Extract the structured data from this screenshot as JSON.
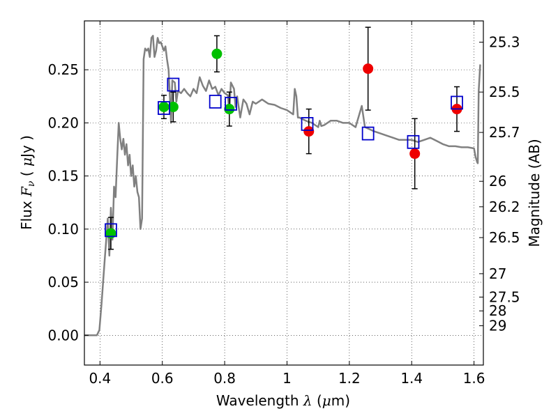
{
  "chart_data": {
    "type": "scatter",
    "xlabel": "Wavelength  λ (μm)",
    "ylabel": "Flux  F_ν  ( μJy )",
    "ylabel_parts": {
      "pre": "Flux  ",
      "sym": "F",
      "sub": "ν",
      "unit_open": "  ( ",
      "mu": "μ",
      "unit_close": "Jy )"
    },
    "xlabel_parts": {
      "pre": "Wavelength  ",
      "sym": "λ",
      "open": " (",
      "mu": "μ",
      "close": "m)"
    },
    "ylabel_right": "Magnitude (AB)",
    "xlim": [
      0.35,
      1.63
    ],
    "ylim": [
      -0.028,
      0.296
    ],
    "x_ticks": [
      {
        "value": 0.4,
        "label": "0.4"
      },
      {
        "value": 0.6,
        "label": "0.6"
      },
      {
        "value": 0.8,
        "label": "0.8"
      },
      {
        "value": 1.0,
        "label": "1"
      },
      {
        "value": 1.2,
        "label": "1.2"
      },
      {
        "value": 1.4,
        "label": "1.4"
      },
      {
        "value": 1.6,
        "label": "1.6"
      }
    ],
    "y_ticks": [
      {
        "value": 0.0,
        "label": "0.00"
      },
      {
        "value": 0.05,
        "label": "0.05"
      },
      {
        "value": 0.1,
        "label": "0.10"
      },
      {
        "value": 0.15,
        "label": "0.15"
      },
      {
        "value": 0.2,
        "label": "0.20"
      },
      {
        "value": 0.25,
        "label": "0.25"
      }
    ],
    "right_ticks": [
      {
        "flux": 0.276,
        "label": "25.3"
      },
      {
        "flux": 0.229,
        "label": "25.5"
      },
      {
        "flux": 0.191,
        "label": "25.7"
      },
      {
        "flux": 0.145,
        "label": "26"
      },
      {
        "flux": 0.121,
        "label": "26.2"
      },
      {
        "flux": 0.092,
        "label": "26.5"
      },
      {
        "flux": 0.058,
        "label": "27"
      },
      {
        "flux": 0.036,
        "label": "27.5"
      },
      {
        "flux": 0.023,
        "label": "28"
      },
      {
        "flux": 0.009,
        "label": "29"
      }
    ],
    "grid": true,
    "colors": {
      "sed": "#808080",
      "model_box": "#0000cc",
      "green": "#00c000",
      "red": "#ee0000",
      "errorbar": "#000000"
    },
    "series": [
      {
        "kind": "sed_model_curve",
        "points": [
          [
            0.35,
            0.0
          ],
          [
            0.39,
            0.0
          ],
          [
            0.398,
            0.005
          ],
          [
            0.405,
            0.03
          ],
          [
            0.41,
            0.05
          ],
          [
            0.415,
            0.07
          ],
          [
            0.42,
            0.09
          ],
          [
            0.425,
            0.11
          ],
          [
            0.43,
            0.075
          ],
          [
            0.435,
            0.12
          ],
          [
            0.44,
            0.09
          ],
          [
            0.445,
            0.14
          ],
          [
            0.45,
            0.13
          ],
          [
            0.455,
            0.165
          ],
          [
            0.46,
            0.2
          ],
          [
            0.465,
            0.185
          ],
          [
            0.47,
            0.175
          ],
          [
            0.475,
            0.185
          ],
          [
            0.48,
            0.17
          ],
          [
            0.485,
            0.18
          ],
          [
            0.49,
            0.16
          ],
          [
            0.495,
            0.17
          ],
          [
            0.5,
            0.15
          ],
          [
            0.505,
            0.16
          ],
          [
            0.51,
            0.14
          ],
          [
            0.515,
            0.15
          ],
          [
            0.52,
            0.135
          ],
          [
            0.525,
            0.13
          ],
          [
            0.53,
            0.1
          ],
          [
            0.535,
            0.11
          ],
          [
            0.54,
            0.26
          ],
          [
            0.545,
            0.27
          ],
          [
            0.55,
            0.268
          ],
          [
            0.555,
            0.27
          ],
          [
            0.56,
            0.262
          ],
          [
            0.565,
            0.28
          ],
          [
            0.57,
            0.282
          ],
          [
            0.575,
            0.262
          ],
          [
            0.58,
            0.268
          ],
          [
            0.585,
            0.28
          ],
          [
            0.59,
            0.275
          ],
          [
            0.595,
            0.276
          ],
          [
            0.6,
            0.272
          ],
          [
            0.605,
            0.268
          ],
          [
            0.61,
            0.272
          ],
          [
            0.615,
            0.26
          ],
          [
            0.62,
            0.25
          ],
          [
            0.625,
            0.22
          ],
          [
            0.628,
            0.2
          ],
          [
            0.632,
            0.24
          ],
          [
            0.64,
            0.238
          ],
          [
            0.645,
            0.22
          ],
          [
            0.65,
            0.23
          ],
          [
            0.66,
            0.228
          ],
          [
            0.67,
            0.232
          ],
          [
            0.68,
            0.228
          ],
          [
            0.69,
            0.225
          ],
          [
            0.7,
            0.232
          ],
          [
            0.71,
            0.228
          ],
          [
            0.72,
            0.243
          ],
          [
            0.73,
            0.235
          ],
          [
            0.74,
            0.23
          ],
          [
            0.75,
            0.24
          ],
          [
            0.76,
            0.232
          ],
          [
            0.77,
            0.234
          ],
          [
            0.78,
            0.226
          ],
          [
            0.79,
            0.232
          ],
          [
            0.8,
            0.228
          ],
          [
            0.81,
            0.226
          ],
          [
            0.815,
            0.21
          ],
          [
            0.82,
            0.238
          ],
          [
            0.83,
            0.232
          ],
          [
            0.835,
            0.215
          ],
          [
            0.84,
            0.225
          ],
          [
            0.85,
            0.205
          ],
          [
            0.86,
            0.222
          ],
          [
            0.87,
            0.218
          ],
          [
            0.88,
            0.208
          ],
          [
            0.89,
            0.22
          ],
          [
            0.9,
            0.218
          ],
          [
            0.92,
            0.222
          ],
          [
            0.94,
            0.218
          ],
          [
            0.96,
            0.217
          ],
          [
            0.98,
            0.214
          ],
          [
            1.0,
            0.212
          ],
          [
            1.02,
            0.208
          ],
          [
            1.025,
            0.232
          ],
          [
            1.03,
            0.225
          ],
          [
            1.035,
            0.205
          ],
          [
            1.04,
            0.205
          ],
          [
            1.06,
            0.202
          ],
          [
            1.08,
            0.2
          ],
          [
            1.1,
            0.196
          ],
          [
            1.105,
            0.202
          ],
          [
            1.11,
            0.197
          ],
          [
            1.12,
            0.198
          ],
          [
            1.14,
            0.202
          ],
          [
            1.16,
            0.202
          ],
          [
            1.18,
            0.2
          ],
          [
            1.2,
            0.2
          ],
          [
            1.22,
            0.196
          ],
          [
            1.24,
            0.216
          ],
          [
            1.25,
            0.196
          ],
          [
            1.28,
            0.192
          ],
          [
            1.3,
            0.19
          ],
          [
            1.32,
            0.188
          ],
          [
            1.34,
            0.186
          ],
          [
            1.36,
            0.184
          ],
          [
            1.38,
            0.184
          ],
          [
            1.4,
            0.184
          ],
          [
            1.42,
            0.182
          ],
          [
            1.44,
            0.184
          ],
          [
            1.46,
            0.186
          ],
          [
            1.48,
            0.183
          ],
          [
            1.5,
            0.18
          ],
          [
            1.52,
            0.178
          ],
          [
            1.54,
            0.178
          ],
          [
            1.56,
            0.177
          ],
          [
            1.58,
            0.177
          ],
          [
            1.6,
            0.176
          ],
          [
            1.605,
            0.168
          ],
          [
            1.61,
            0.163
          ],
          [
            1.612,
            0.162
          ],
          [
            1.615,
            0.23
          ],
          [
            1.62,
            0.255
          ]
        ]
      },
      {
        "kind": "model_boxes",
        "points": [
          [
            0.435,
            0.099
          ],
          [
            0.605,
            0.214
          ],
          [
            0.635,
            0.236
          ],
          [
            0.77,
            0.22
          ],
          [
            0.82,
            0.218
          ],
          [
            1.065,
            0.199
          ],
          [
            1.26,
            0.19
          ],
          [
            1.405,
            0.182
          ],
          [
            1.545,
            0.219
          ]
        ]
      },
      {
        "kind": "observed_green",
        "points": [
          {
            "x": 0.435,
            "y": 0.096,
            "err": 0.015
          },
          {
            "x": 0.605,
            "y": 0.215,
            "err": 0.011
          },
          {
            "x": 0.635,
            "y": 0.215,
            "err": 0.014
          },
          {
            "x": 0.775,
            "y": 0.265,
            "err": 0.017
          },
          {
            "x": 0.815,
            "y": 0.213,
            "err": 0.016
          }
        ]
      },
      {
        "kind": "observed_red",
        "points": [
          {
            "x": 1.07,
            "y": 0.192,
            "err": 0.021
          },
          {
            "x": 1.26,
            "y": 0.251,
            "err": 0.039
          },
          {
            "x": 1.41,
            "y": 0.171,
            "err": 0.033
          },
          {
            "x": 1.545,
            "y": 0.213,
            "err": 0.021
          }
        ]
      }
    ]
  }
}
